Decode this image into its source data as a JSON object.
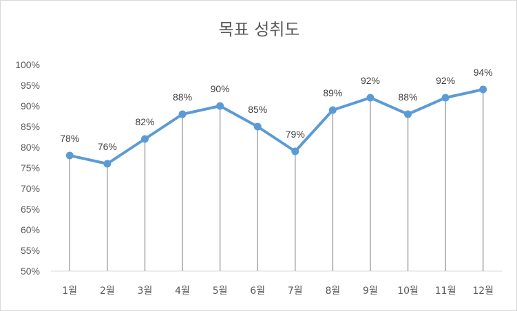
{
  "chart_data": {
    "type": "line",
    "title": "목표 성취도",
    "categories": [
      "1월",
      "2월",
      "3월",
      "4월",
      "5월",
      "6월",
      "7월",
      "8월",
      "9월",
      "10월",
      "11월",
      "12월"
    ],
    "series": [
      {
        "values": [
          78,
          76,
          82,
          88,
          90,
          85,
          79,
          89,
          92,
          88,
          92,
          94
        ]
      }
    ],
    "data_labels": [
      "78%",
      "76%",
      "82%",
      "88%",
      "90%",
      "85%",
      "79%",
      "89%",
      "92%",
      "88%",
      "92%",
      "94%"
    ],
    "yticks": [
      "50%",
      "55%",
      "60%",
      "65%",
      "70%",
      "75%",
      "80%",
      "85%",
      "90%",
      "95%",
      "100%"
    ],
    "ylim": [
      50,
      100
    ],
    "drop_lines": true,
    "grid": false,
    "legend": "none",
    "colors": {
      "line": "#5b9bd5",
      "drop_line": "#a6a6a6",
      "text": "#595959"
    }
  }
}
